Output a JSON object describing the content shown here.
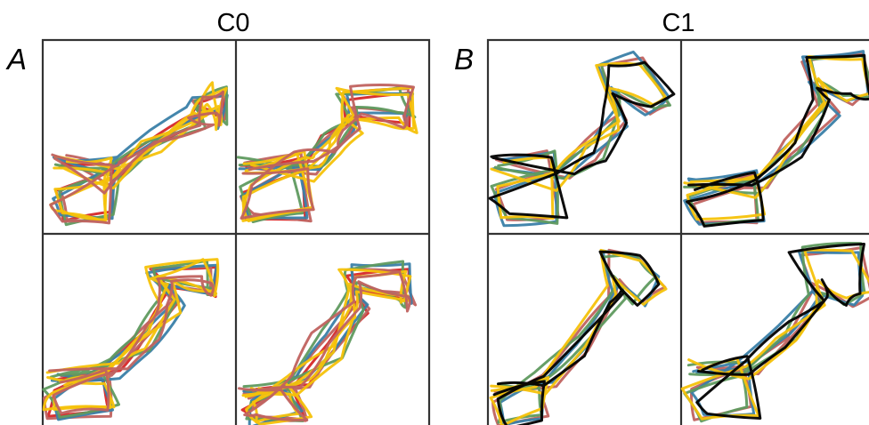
{
  "figure": {
    "titles": [
      "C0",
      "C1"
    ],
    "panel_labels": [
      "A",
      "B"
    ]
  },
  "colors": {
    "red": "#d62728",
    "rose": "#c0625f",
    "blue": "#3a7fa8",
    "green": "#5f9a5f",
    "yellow": "#f6c20a",
    "black": "#000000",
    "frame": "#333333"
  }
}
